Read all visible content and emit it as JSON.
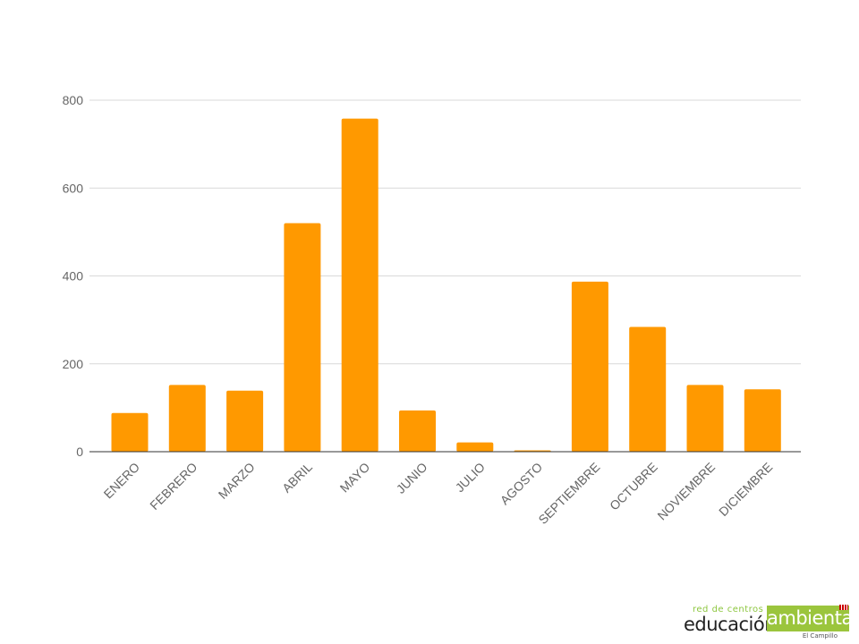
{
  "chart_data": {
    "type": "bar",
    "categories": [
      "ENERO",
      "FEBRERO",
      "MARZO",
      "ABRIL",
      "MAYO",
      "JUNIO",
      "JULIO",
      "AGOSTO",
      "SEPTIEMBRE",
      "OCTUBRE",
      "NOVIEMBRE",
      "DICIEMBRE"
    ],
    "values": [
      88,
      152,
      139,
      520,
      758,
      94,
      21,
      3,
      387,
      284,
      152,
      142
    ],
    "title": "",
    "xlabel": "",
    "ylabel": "",
    "ylim": [
      0,
      800
    ],
    "yticks": [
      0,
      200,
      400,
      600,
      800
    ],
    "bar_color": "#ff9900",
    "grid": true,
    "legend": "none"
  },
  "logo": {
    "top_text": "red de centros",
    "main_text": "educación",
    "box_text": "ambiental",
    "sub_text": "El Campillo",
    "accent_color": "#9bc53d"
  }
}
